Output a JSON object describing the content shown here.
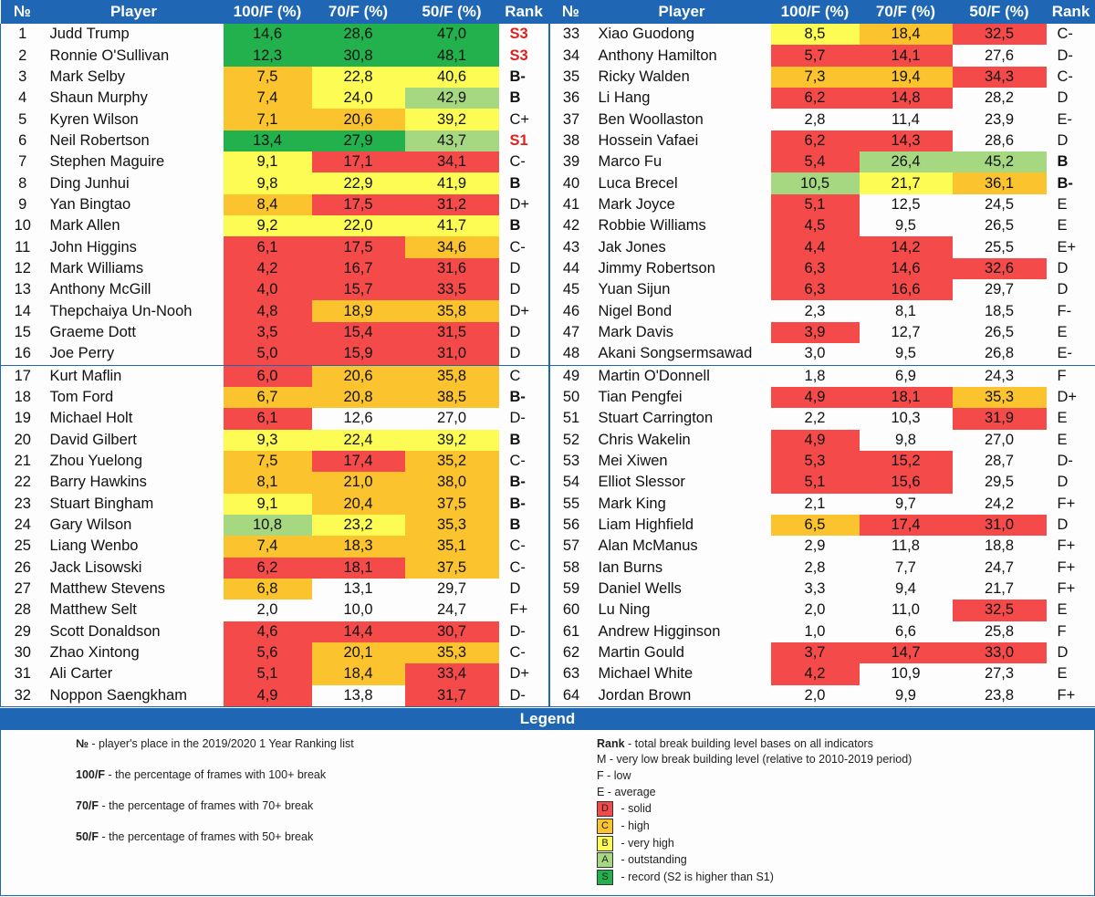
{
  "headers": {
    "num": "№",
    "player": "Player",
    "c100": "100/F (%)",
    "c70": "70/F (%)",
    "c50": "50/F (%)",
    "rank": "Rank"
  },
  "colors": {
    "red": "#f44a4a",
    "orange": "#fbc32d",
    "yellow": "#fcfc55",
    "light_green": "#a6d882",
    "green": "#22b14c",
    "header_blue": "#1f66b4"
  },
  "rows": [
    {
      "left": {
        "num": "1",
        "player": "Judd Trump",
        "v100": "14,6",
        "v70": "28,6",
        "v50": "47,0",
        "rank": "S3",
        "c": [
          "grn",
          "grn",
          "grn"
        ]
      },
      "right": {
        "num": "33",
        "player": "Xiao Guodong",
        "v100": "8,5",
        "v70": "18,4",
        "v50": "32,5",
        "rank": "C-",
        "c": [
          "yel",
          "org",
          "red"
        ]
      }
    },
    {
      "left": {
        "num": "2",
        "player": "Ronnie O'Sullivan",
        "v100": "12,3",
        "v70": "30,8",
        "v50": "48,1",
        "rank": "S3",
        "c": [
          "grn",
          "grn",
          "grn"
        ]
      },
      "right": {
        "num": "34",
        "player": "Anthony Hamilton",
        "v100": "5,7",
        "v70": "14,1",
        "v50": "27,6",
        "rank": "D-",
        "c": [
          "red",
          "red",
          ""
        ]
      }
    },
    {
      "left": {
        "num": "3",
        "player": "Mark Selby",
        "v100": "7,5",
        "v70": "22,8",
        "v50": "40,6",
        "rank": "B-",
        "c": [
          "org",
          "yel",
          "yel"
        ]
      },
      "right": {
        "num": "35",
        "player": "Ricky Walden",
        "v100": "7,3",
        "v70": "19,4",
        "v50": "34,3",
        "rank": "C-",
        "c": [
          "org",
          "org",
          "red"
        ]
      }
    },
    {
      "left": {
        "num": "4",
        "player": "Shaun Murphy",
        "v100": "7,4",
        "v70": "24,0",
        "v50": "42,9",
        "rank": "B",
        "c": [
          "org",
          "yel",
          "lgr"
        ]
      },
      "right": {
        "num": "36",
        "player": "Li Hang",
        "v100": "6,2",
        "v70": "14,8",
        "v50": "28,2",
        "rank": "D",
        "c": [
          "red",
          "red",
          ""
        ]
      }
    },
    {
      "left": {
        "num": "5",
        "player": "Kyren Wilson",
        "v100": "7,1",
        "v70": "20,6",
        "v50": "39,2",
        "rank": "C+",
        "c": [
          "org",
          "org",
          "yel"
        ]
      },
      "right": {
        "num": "37",
        "player": "Ben Woollaston",
        "v100": "2,8",
        "v70": "11,4",
        "v50": "23,9",
        "rank": "E-",
        "c": [
          "",
          "",
          ""
        ]
      }
    },
    {
      "left": {
        "num": "6",
        "player": "Neil Robertson",
        "v100": "13,4",
        "v70": "27,9",
        "v50": "43,7",
        "rank": "S1",
        "c": [
          "grn",
          "grn",
          "lgr"
        ]
      },
      "right": {
        "num": "38",
        "player": "Hossein Vafaei",
        "v100": "6,2",
        "v70": "14,3",
        "v50": "28,6",
        "rank": "D",
        "c": [
          "red",
          "red",
          ""
        ]
      }
    },
    {
      "left": {
        "num": "7",
        "player": "Stephen Maguire",
        "v100": "9,1",
        "v70": "17,1",
        "v50": "34,1",
        "rank": "C-",
        "c": [
          "yel",
          "red",
          "red"
        ]
      },
      "right": {
        "num": "39",
        "player": "Marco Fu",
        "v100": "5,4",
        "v70": "26,4",
        "v50": "45,2",
        "rank": "B",
        "c": [
          "red",
          "lgr",
          "lgr"
        ]
      }
    },
    {
      "left": {
        "num": "8",
        "player": "Ding Junhui",
        "v100": "9,8",
        "v70": "22,9",
        "v50": "41,9",
        "rank": "B",
        "c": [
          "yel",
          "yel",
          "yel"
        ]
      },
      "right": {
        "num": "40",
        "player": "Luca Brecel",
        "v100": "10,5",
        "v70": "21,7",
        "v50": "36,1",
        "rank": "B-",
        "c": [
          "lgr",
          "yel",
          "org"
        ]
      }
    },
    {
      "left": {
        "num": "9",
        "player": "Yan Bingtao",
        "v100": "8,4",
        "v70": "17,5",
        "v50": "31,2",
        "rank": "D+",
        "c": [
          "org",
          "red",
          "red"
        ]
      },
      "right": {
        "num": "41",
        "player": "Mark Joyce",
        "v100": "5,1",
        "v70": "12,5",
        "v50": "24,5",
        "rank": "E",
        "c": [
          "red",
          "",
          ""
        ]
      }
    },
    {
      "left": {
        "num": "10",
        "player": "Mark Allen",
        "v100": "9,2",
        "v70": "22,0",
        "v50": "41,7",
        "rank": "B",
        "c": [
          "yel",
          "yel",
          "yel"
        ]
      },
      "right": {
        "num": "42",
        "player": "Robbie Williams",
        "v100": "4,5",
        "v70": "9,5",
        "v50": "26,5",
        "rank": "E",
        "c": [
          "red",
          "",
          ""
        ]
      }
    },
    {
      "left": {
        "num": "11",
        "player": "John Higgins",
        "v100": "6,1",
        "v70": "17,5",
        "v50": "34,6",
        "rank": "C-",
        "c": [
          "red",
          "red",
          "org"
        ]
      },
      "right": {
        "num": "43",
        "player": "Jak Jones",
        "v100": "4,4",
        "v70": "14,2",
        "v50": "25,5",
        "rank": "E+",
        "c": [
          "red",
          "red",
          ""
        ]
      }
    },
    {
      "left": {
        "num": "12",
        "player": "Mark Williams",
        "v100": "4,2",
        "v70": "16,7",
        "v50": "31,6",
        "rank": "D",
        "c": [
          "red",
          "red",
          "red"
        ]
      },
      "right": {
        "num": "44",
        "player": "Jimmy Robertson",
        "v100": "6,3",
        "v70": "14,6",
        "v50": "32,6",
        "rank": "D",
        "c": [
          "red",
          "red",
          "red"
        ]
      }
    },
    {
      "left": {
        "num": "13",
        "player": "Anthony McGill",
        "v100": "4,0",
        "v70": "15,7",
        "v50": "33,5",
        "rank": "D",
        "c": [
          "red",
          "red",
          "red"
        ]
      },
      "right": {
        "num": "45",
        "player": "Yuan Sijun",
        "v100": "6,3",
        "v70": "16,6",
        "v50": "29,7",
        "rank": "D",
        "c": [
          "red",
          "red",
          ""
        ]
      }
    },
    {
      "left": {
        "num": "14",
        "player": "Thepchaiya Un-Nooh",
        "v100": "4,8",
        "v70": "18,9",
        "v50": "35,8",
        "rank": "D+",
        "c": [
          "red",
          "org",
          "org"
        ]
      },
      "right": {
        "num": "46",
        "player": "Nigel Bond",
        "v100": "2,3",
        "v70": "8,1",
        "v50": "18,5",
        "rank": "F-",
        "c": [
          "",
          "",
          ""
        ]
      }
    },
    {
      "left": {
        "num": "15",
        "player": "Graeme Dott",
        "v100": "3,5",
        "v70": "15,4",
        "v50": "31,5",
        "rank": "D",
        "c": [
          "red",
          "red",
          "red"
        ]
      },
      "right": {
        "num": "47",
        "player": "Mark Davis",
        "v100": "3,9",
        "v70": "12,7",
        "v50": "26,5",
        "rank": "E",
        "c": [
          "red",
          "",
          ""
        ]
      }
    },
    {
      "left": {
        "num": "16",
        "player": "Joe Perry",
        "v100": "5,0",
        "v70": "15,9",
        "v50": "31,0",
        "rank": "D",
        "c": [
          "red",
          "red",
          "red"
        ]
      },
      "right": {
        "num": "48",
        "player": "Akani Songsermsawad",
        "v100": "3,0",
        "v70": "9,5",
        "v50": "26,8",
        "rank": "E-",
        "c": [
          "",
          "",
          ""
        ]
      }
    },
    {
      "left": {
        "num": "17",
        "player": "Kurt Maflin",
        "v100": "6,0",
        "v70": "20,6",
        "v50": "35,8",
        "rank": "C",
        "c": [
          "red",
          "org",
          "org"
        ]
      },
      "right": {
        "num": "49",
        "player": "Martin O'Donnell",
        "v100": "1,8",
        "v70": "6,9",
        "v50": "24,3",
        "rank": "F",
        "c": [
          "",
          "",
          ""
        ]
      }
    },
    {
      "left": {
        "num": "18",
        "player": "Tom Ford",
        "v100": "6,7",
        "v70": "20,8",
        "v50": "38,5",
        "rank": "B-",
        "c": [
          "org",
          "org",
          "org"
        ]
      },
      "right": {
        "num": "50",
        "player": "Tian Pengfei",
        "v100": "4,9",
        "v70": "18,1",
        "v50": "35,3",
        "rank": "D+",
        "c": [
          "red",
          "red",
          "org"
        ]
      }
    },
    {
      "left": {
        "num": "19",
        "player": "Michael Holt",
        "v100": "6,1",
        "v70": "12,6",
        "v50": "27,0",
        "rank": "D-",
        "c": [
          "red",
          "",
          ""
        ]
      },
      "right": {
        "num": "51",
        "player": "Stuart Carrington",
        "v100": "2,2",
        "v70": "10,3",
        "v50": "31,9",
        "rank": "E",
        "c": [
          "",
          "",
          "red"
        ]
      }
    },
    {
      "left": {
        "num": "20",
        "player": "David Gilbert",
        "v100": "9,3",
        "v70": "22,4",
        "v50": "39,2",
        "rank": "B",
        "c": [
          "yel",
          "yel",
          "yel"
        ]
      },
      "right": {
        "num": "52",
        "player": "Chris Wakelin",
        "v100": "4,9",
        "v70": "9,8",
        "v50": "27,0",
        "rank": "E",
        "c": [
          "red",
          "",
          ""
        ]
      }
    },
    {
      "left": {
        "num": "21",
        "player": "Zhou Yuelong",
        "v100": "7,5",
        "v70": "17,4",
        "v50": "35,2",
        "rank": "C-",
        "c": [
          "org",
          "red",
          "org"
        ]
      },
      "right": {
        "num": "53",
        "player": "Mei Xiwen",
        "v100": "5,3",
        "v70": "15,2",
        "v50": "28,7",
        "rank": "D-",
        "c": [
          "red",
          "red",
          ""
        ]
      }
    },
    {
      "left": {
        "num": "22",
        "player": "Barry Hawkins",
        "v100": "8,1",
        "v70": "21,0",
        "v50": "38,0",
        "rank": "B-",
        "c": [
          "org",
          "org",
          "org"
        ]
      },
      "right": {
        "num": "54",
        "player": "Elliot Slessor",
        "v100": "5,1",
        "v70": "15,6",
        "v50": "29,5",
        "rank": "D",
        "c": [
          "red",
          "red",
          ""
        ]
      }
    },
    {
      "left": {
        "num": "23",
        "player": "Stuart Bingham",
        "v100": "9,1",
        "v70": "20,4",
        "v50": "37,5",
        "rank": "B-",
        "c": [
          "yel",
          "org",
          "org"
        ]
      },
      "right": {
        "num": "55",
        "player": "Mark King",
        "v100": "2,1",
        "v70": "9,7",
        "v50": "24,2",
        "rank": "F+",
        "c": [
          "",
          "",
          ""
        ]
      }
    },
    {
      "left": {
        "num": "24",
        "player": "Gary Wilson",
        "v100": "10,8",
        "v70": "23,2",
        "v50": "35,3",
        "rank": "B",
        "c": [
          "lgr",
          "yel",
          "org"
        ]
      },
      "right": {
        "num": "56",
        "player": "Liam Highfield",
        "v100": "6,5",
        "v70": "17,4",
        "v50": "31,0",
        "rank": "D",
        "c": [
          "org",
          "red",
          "red"
        ]
      }
    },
    {
      "left": {
        "num": "25",
        "player": "Liang Wenbo",
        "v100": "7,4",
        "v70": "18,3",
        "v50": "35,1",
        "rank": "C-",
        "c": [
          "org",
          "org",
          "org"
        ]
      },
      "right": {
        "num": "57",
        "player": "Alan McManus",
        "v100": "2,9",
        "v70": "11,8",
        "v50": "18,8",
        "rank": "F+",
        "c": [
          "",
          "",
          ""
        ]
      }
    },
    {
      "left": {
        "num": "26",
        "player": "Jack Lisowski",
        "v100": "6,2",
        "v70": "18,1",
        "v50": "37,5",
        "rank": "C-",
        "c": [
          "red",
          "red",
          "org"
        ]
      },
      "right": {
        "num": "58",
        "player": "Ian Burns",
        "v100": "2,8",
        "v70": "7,7",
        "v50": "24,7",
        "rank": "F+",
        "c": [
          "",
          "",
          ""
        ]
      }
    },
    {
      "left": {
        "num": "27",
        "player": "Matthew Stevens",
        "v100": "6,8",
        "v70": "13,1",
        "v50": "29,7",
        "rank": "D",
        "c": [
          "org",
          "",
          ""
        ]
      },
      "right": {
        "num": "59",
        "player": "Daniel Wells",
        "v100": "3,3",
        "v70": "9,4",
        "v50": "21,7",
        "rank": "F+",
        "c": [
          "",
          "",
          ""
        ]
      }
    },
    {
      "left": {
        "num": "28",
        "player": "Matthew Selt",
        "v100": "2,0",
        "v70": "10,0",
        "v50": "24,7",
        "rank": "F+",
        "c": [
          "",
          "",
          ""
        ]
      },
      "right": {
        "num": "60",
        "player": "Lu Ning",
        "v100": "2,0",
        "v70": "11,0",
        "v50": "32,5",
        "rank": "E",
        "c": [
          "",
          "",
          "red"
        ]
      }
    },
    {
      "left": {
        "num": "29",
        "player": "Scott Donaldson",
        "v100": "4,6",
        "v70": "14,4",
        "v50": "30,7",
        "rank": "D-",
        "c": [
          "red",
          "red",
          "red"
        ]
      },
      "right": {
        "num": "61",
        "player": "Andrew Higginson",
        "v100": "1,0",
        "v70": "6,6",
        "v50": "25,8",
        "rank": "F",
        "c": [
          "",
          "",
          ""
        ]
      }
    },
    {
      "left": {
        "num": "30",
        "player": "Zhao Xintong",
        "v100": "5,6",
        "v70": "20,1",
        "v50": "35,3",
        "rank": "C-",
        "c": [
          "red",
          "org",
          "org"
        ]
      },
      "right": {
        "num": "62",
        "player": "Martin Gould",
        "v100": "3,7",
        "v70": "14,7",
        "v50": "33,0",
        "rank": "D",
        "c": [
          "red",
          "red",
          "red"
        ]
      }
    },
    {
      "left": {
        "num": "31",
        "player": "Ali Carter",
        "v100": "5,1",
        "v70": "18,4",
        "v50": "33,4",
        "rank": "D+",
        "c": [
          "red",
          "org",
          "red"
        ]
      },
      "right": {
        "num": "63",
        "player": "Michael White",
        "v100": "4,2",
        "v70": "10,9",
        "v50": "27,3",
        "rank": "E",
        "c": [
          "red",
          "",
          ""
        ]
      }
    },
    {
      "left": {
        "num": "32",
        "player": "Noppon Saengkham",
        "v100": "4,9",
        "v70": "13,8",
        "v50": "31,7",
        "rank": "D-",
        "c": [
          "red",
          "",
          "red"
        ]
      },
      "right": {
        "num": "64",
        "player": "Jordan Brown",
        "v100": "2,0",
        "v70": "9,9",
        "v50": "23,8",
        "rank": "F+",
        "c": [
          "",
          "",
          ""
        ]
      }
    }
  ],
  "legend": {
    "title": "Legend",
    "left": [
      {
        "term": "№",
        "desc": " - player's place in the 2019/2020 1 Year Ranking list"
      },
      {
        "term": "100/F",
        "desc": " - the percentage of frames with 100+ break"
      },
      {
        "term": "70/F",
        "desc": " - the percentage of frames with 70+ break"
      },
      {
        "term": "50/F",
        "desc": " - the percentage of frames with 50+ break"
      }
    ],
    "rank_term": "Rank",
    "rank_desc": " - total break building level bases on all indicators",
    "plain": [
      "M - very low break building level (relative to 2010-2019 period)",
      "F - low",
      "E - average"
    ],
    "swatches": [
      {
        "letter": "D",
        "desc": " - solid",
        "color": "red"
      },
      {
        "letter": "C",
        "desc": " - high",
        "color": "org"
      },
      {
        "letter": "B",
        "desc": " - very high",
        "color": "yel"
      },
      {
        "letter": "A",
        "desc": " - outstanding",
        "color": "lgr"
      },
      {
        "letter": "S",
        "desc": " - record (S2 is higher than S1)",
        "color": "grn"
      }
    ]
  }
}
